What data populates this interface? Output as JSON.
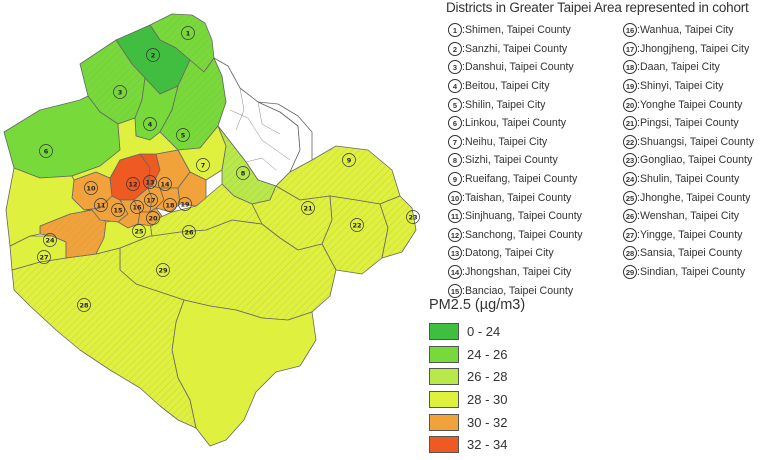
{
  "legend": {
    "districts_title": "Districts in Greater Taipei Area represented in cohort",
    "pm_title": "PM2.5 (µg/m3)"
  },
  "colors": {
    "c0": "#3fbf3f",
    "c1": "#77d93a",
    "c2": "#b9e84a",
    "c3": "#dff03e",
    "c4": "#f2a23a",
    "c5": "#ef5a22",
    "boundary": "#666666",
    "unsampled": "#ffffff"
  },
  "districts": [
    {
      "n": "1",
      "name": "Shimen, Taipei County"
    },
    {
      "n": "2",
      "name": "Sanzhi, Taipei County"
    },
    {
      "n": "3",
      "name": "Danshui, Taipei County"
    },
    {
      "n": "4",
      "name": "Beitou, Taipei City"
    },
    {
      "n": "5",
      "name": "Shilin, Taipei City"
    },
    {
      "n": "6",
      "name": "Linkou, Taipei County"
    },
    {
      "n": "7",
      "name": "Neihu, Taipei City"
    },
    {
      "n": "8",
      "name": "Sizhi, Taipei County"
    },
    {
      "n": "9",
      "name": "Rueifang, Taipei County"
    },
    {
      "n": "10",
      "name": "Taishan, Taipei County"
    },
    {
      "n": "11",
      "name": "Sinjhuang, Taipei County"
    },
    {
      "n": "12",
      "name": "Sanchong, Taipei County"
    },
    {
      "n": "13",
      "name": "Datong, Taipei City"
    },
    {
      "n": "14",
      "name": "Jhongshan, Taipei City"
    },
    {
      "n": "15",
      "name": "Banciao, Taipei County"
    },
    {
      "n": "16",
      "name": "Wanhua, Taipei City"
    },
    {
      "n": "17",
      "name": "Jhongjheng, Taipei City"
    },
    {
      "n": "18",
      "name": "Daan, Taipei City"
    },
    {
      "n": "19",
      "name": "Shinyi, Taipei City"
    },
    {
      "n": "20",
      "name": "Yonghe Taipei County"
    },
    {
      "n": "21",
      "name": "Pingsi, Taipei County"
    },
    {
      "n": "22",
      "name": "Shuangsi, Taipei County"
    },
    {
      "n": "23",
      "name": "Gongliao, Taipei County"
    },
    {
      "n": "24",
      "name": "Shulin, Taipei County"
    },
    {
      "n": "25",
      "name": "Jhonghe, Taipei County"
    },
    {
      "n": "26",
      "name": "Wenshan, Taipei City"
    },
    {
      "n": "27",
      "name": "Yingge, Taipei County"
    },
    {
      "n": "28",
      "name": "Sansia, Taipei County"
    },
    {
      "n": "29",
      "name": "Sindian, Taipei County"
    }
  ],
  "pm_classes": [
    {
      "label": "0 - 24",
      "color": "#3fbf3f"
    },
    {
      "label": "24 - 26",
      "color": "#77d93a"
    },
    {
      "label": "26 - 28",
      "color": "#b9e84a"
    },
    {
      "label": "28 - 30",
      "color": "#dff03e"
    },
    {
      "label": "30 - 32",
      "color": "#f2a23a"
    },
    {
      "label": "32 - 34",
      "color": "#ef5a22"
    }
  ],
  "map_labels": [
    "1",
    "2",
    "3",
    "4",
    "5",
    "6",
    "7",
    "8",
    "9",
    "10",
    "11",
    "12",
    "13",
    "14",
    "15",
    "16",
    "17",
    "18",
    "19",
    "20",
    "21",
    "22",
    "23",
    "24",
    "25",
    "26",
    "27",
    "28",
    "29"
  ]
}
